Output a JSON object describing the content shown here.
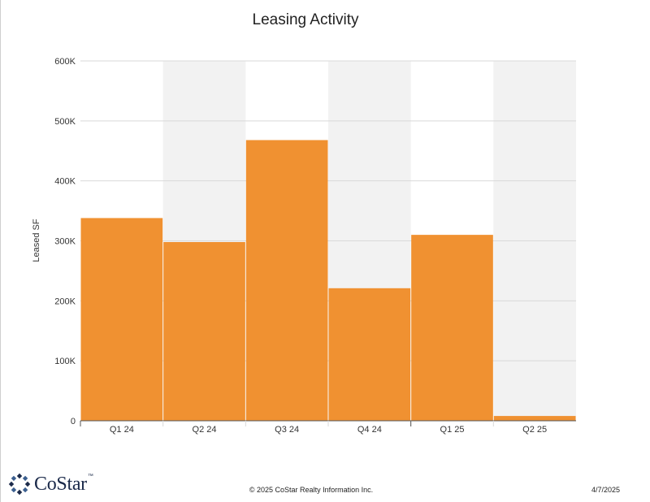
{
  "chart_data": {
    "type": "bar",
    "title": "Leasing Activity",
    "ylabel": "Leased SF",
    "xlabel": "",
    "categories": [
      "Q1 24",
      "Q2 24",
      "Q3 24",
      "Q4 24",
      "Q1 25",
      "Q2 25"
    ],
    "values": [
      338000,
      298000,
      468000,
      221000,
      310000,
      8000
    ],
    "ylim": [
      0,
      600000
    ],
    "yticks": [
      0,
      100000,
      200000,
      300000,
      400000,
      500000,
      600000
    ],
    "ytick_labels": [
      "0",
      "100K",
      "200K",
      "300K",
      "400K",
      "500K",
      "600K"
    ],
    "grid": true,
    "colors": {
      "bar": "#F09131",
      "band": "#F2F2F2",
      "grid": "#D9D9D9",
      "axis": "#555555"
    }
  },
  "footer": {
    "logo_text": "CoStar",
    "logo_tm": "™",
    "copyright": "© 2025 CoStar Realty Information Inc.",
    "date": "4/7/2025"
  },
  "logo_colors": {
    "primary": "#1B2A4A",
    "accent": "#3B5F8F"
  }
}
